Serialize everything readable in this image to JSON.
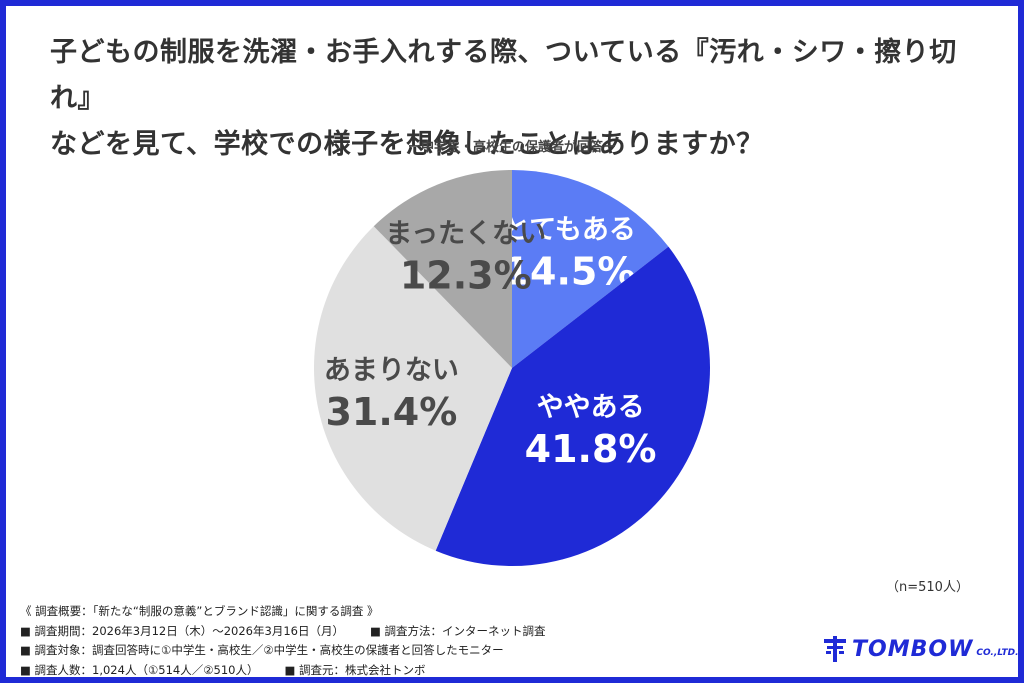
{
  "title_line1": "子どもの制服を洗濯・お手入れする際、ついている『汚れ・シワ・擦り切れ』",
  "title_line2": "などを見て、学校での様子を想像したことはありますか？",
  "subtitle": "ー中学生・高校生の保護者が回答ー",
  "sample_size": "（n=510人）",
  "notes": {
    "line1": "《 調査概要：「新たな“制服の意義”とブランド認識」に関する調査 》",
    "line2a": "■ 調査期間：2026年3月12日（木）～2026年3月16日（月）",
    "line2b": "■ 調査方法：インターネット調査",
    "line3": "■ 調査対象：調査回答時に①中学生・高校生／②中学生・高校生の保護者と回答したモニター",
    "line4a": "■ 調査人数：1,024人（①514人／②510人）",
    "line4b": "■ 調査元：株式会社トンボ"
  },
  "logo": {
    "name": "TOMBOW",
    "suffix": "CO.,LTD.",
    "icon": "tombow-logo-icon"
  },
  "chart_data": {
    "type": "pie",
    "start": "12 o'clock, clockwise",
    "slices": [
      {
        "label": "とてもある",
        "value": 14.5,
        "display": "14.5%",
        "color": "#5b7cf5",
        "text_color": "#ffffff"
      },
      {
        "label": "ややある",
        "value": 41.8,
        "display": "41.8%",
        "color": "#1f2ad6",
        "text_color": "#ffffff"
      },
      {
        "label": "あまりない",
        "value": 31.4,
        "display": "31.4%",
        "color": "#e0e0e0",
        "text_color": "#4a4a4a"
      },
      {
        "label": "まったくない",
        "value": 12.3,
        "display": "12.3%",
        "color": "#a8a8a8",
        "text_color": "#4a4a4a"
      }
    ]
  }
}
